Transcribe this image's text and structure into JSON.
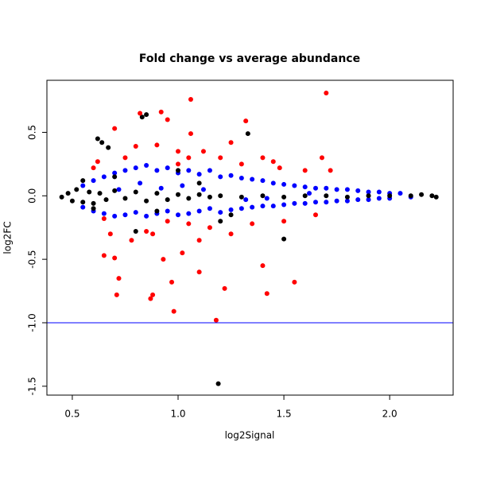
{
  "chart_data": {
    "type": "scatter",
    "title": "Fold change vs average abundance",
    "xlabel": "log2Signal",
    "ylabel": "log2FC",
    "xlim": [
      0.38,
      2.3
    ],
    "ylim": [
      -1.57,
      0.91
    ],
    "xticks": [
      0.5,
      {
        "value": 1,
        "label": "1.0"
      },
      1.5,
      {
        "value": 2,
        "label": "2.0"
      }
    ],
    "yticks": [
      -1.5,
      {
        "value": -1,
        "label": "-1.0"
      },
      -0.5,
      {
        "value": 0,
        "label": "0.0"
      },
      0.5
    ],
    "hline": {
      "value": -1,
      "color": "#0000ff"
    },
    "series": [
      {
        "color": "#0000ff",
        "x": [
          0.55,
          0.55,
          0.6,
          0.6,
          0.65,
          0.65,
          0.7,
          0.7,
          0.72,
          0.75,
          0.75,
          0.8,
          0.8,
          0.82,
          0.85,
          0.85,
          0.9,
          0.9,
          0.95,
          0.95,
          1.0,
          1.0,
          1.02,
          1.05,
          1.05,
          1.1,
          1.1,
          1.15,
          1.15,
          1.2,
          1.2,
          1.25,
          1.25,
          1.3,
          1.3,
          1.35,
          1.35,
          1.4,
          1.4,
          1.45,
          1.45,
          1.5,
          1.5,
          1.55,
          1.55,
          1.6,
          1.6,
          1.65,
          1.65,
          1.7,
          1.7,
          1.75,
          1.75,
          1.8,
          1.8,
          1.85,
          1.85,
          1.9,
          1.9,
          1.95,
          1.95,
          2.0,
          2.0,
          2.05,
          2.1,
          1.12,
          1.32,
          0.92,
          1.62,
          1.42
        ],
        "y": [
          0.08,
          -0.09,
          0.12,
          -0.12,
          0.15,
          -0.14,
          0.18,
          -0.16,
          0.05,
          0.2,
          -0.15,
          0.22,
          -0.13,
          0.1,
          0.24,
          -0.16,
          0.2,
          -0.14,
          0.22,
          -0.12,
          0.18,
          -0.15,
          0.08,
          0.2,
          -0.14,
          0.17,
          -0.12,
          0.2,
          -0.1,
          0.15,
          -0.13,
          0.16,
          -0.11,
          0.14,
          -0.1,
          0.13,
          -0.09,
          0.12,
          -0.08,
          0.1,
          -0.08,
          0.09,
          -0.07,
          0.08,
          -0.06,
          0.07,
          -0.06,
          0.06,
          -0.05,
          0.06,
          -0.05,
          0.05,
          -0.04,
          0.05,
          -0.04,
          0.04,
          -0.03,
          0.03,
          -0.03,
          0.03,
          -0.02,
          0.02,
          -0.02,
          0.02,
          -0.01,
          0.05,
          -0.03,
          0.06,
          0.02,
          -0.02
        ]
      },
      {
        "color": "#000000",
        "x": [
          0.45,
          0.48,
          0.5,
          0.52,
          0.55,
          0.58,
          0.6,
          0.63,
          0.66,
          0.7,
          0.75,
          0.8,
          0.85,
          0.9,
          0.95,
          1.0,
          1.05,
          1.1,
          1.15,
          1.2,
          1.3,
          1.4,
          1.5,
          1.6,
          1.7,
          1.8,
          1.9,
          2.0,
          2.1,
          2.15,
          2.2,
          2.22,
          0.62,
          0.64,
          0.67,
          0.83,
          0.85,
          1.33,
          0.55,
          0.6,
          0.7,
          0.9,
          1.1,
          1.25,
          1.5,
          0.8,
          1.0,
          1.2,
          1.19
        ],
        "y": [
          -0.01,
          0.02,
          -0.04,
          0.05,
          -0.05,
          0.03,
          -0.06,
          0.02,
          -0.03,
          0.04,
          -0.02,
          0.03,
          -0.04,
          0.02,
          -0.03,
          0.01,
          -0.02,
          0.01,
          -0.01,
          0.0,
          -0.01,
          0.0,
          -0.01,
          0.0,
          0.0,
          -0.01,
          0.0,
          0.0,
          0.0,
          0.01,
          0.0,
          -0.01,
          0.45,
          0.42,
          0.38,
          0.62,
          0.64,
          0.49,
          0.12,
          -0.1,
          0.15,
          -0.12,
          0.1,
          -0.15,
          -0.34,
          -0.28,
          0.2,
          -0.2,
          -1.48
        ]
      },
      {
        "color": "#ff0000",
        "x": [
          0.62,
          0.65,
          0.7,
          0.7,
          0.72,
          0.71,
          0.75,
          0.78,
          0.8,
          0.82,
          0.85,
          0.87,
          0.88,
          0.9,
          0.92,
          0.95,
          0.95,
          0.97,
          0.98,
          1.0,
          1.02,
          1.05,
          1.05,
          1.06,
          1.06,
          1.1,
          1.12,
          1.15,
          1.18,
          1.2,
          1.22,
          1.25,
          1.25,
          1.3,
          1.32,
          1.35,
          1.4,
          1.4,
          1.42,
          1.45,
          1.48,
          1.5,
          1.55,
          1.6,
          1.65,
          1.68,
          1.7,
          1.72,
          0.6,
          0.68,
          0.88,
          1.0,
          1.1,
          0.93,
          0.65
        ],
        "y": [
          0.27,
          -0.18,
          0.53,
          -0.49,
          -0.65,
          -0.78,
          0.3,
          -0.35,
          0.39,
          0.65,
          -0.28,
          -0.81,
          -0.78,
          0.4,
          0.66,
          0.6,
          -0.2,
          -0.68,
          -0.91,
          0.25,
          -0.45,
          0.3,
          -0.22,
          0.76,
          0.49,
          -0.6,
          0.35,
          -0.25,
          -0.98,
          0.3,
          -0.73,
          0.42,
          -0.3,
          0.25,
          0.59,
          -0.22,
          0.3,
          -0.55,
          -0.77,
          0.27,
          0.22,
          -0.2,
          -0.68,
          0.2,
          -0.15,
          0.3,
          0.81,
          0.2,
          0.22,
          -0.3,
          -0.3,
          0.35,
          -0.35,
          -0.5,
          -0.47
        ]
      }
    ]
  }
}
